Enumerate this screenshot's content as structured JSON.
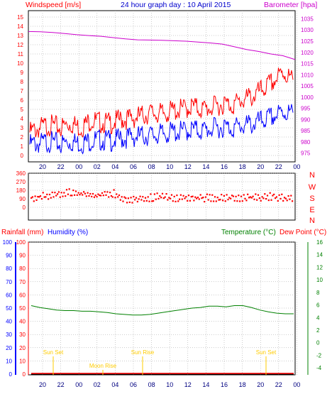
{
  "header": {
    "windspeed_label": "Windspeed [m/s]",
    "title": "24 hour graph day : 10 April 2015",
    "barometer_label": "Barometer [hpa]"
  },
  "colors": {
    "wind_gust": "#ff0000",
    "wind_avg": "#0000ff",
    "barometer": "#cc00cc",
    "direction": "#ff0000",
    "rain": "#ff0000",
    "humidity": "#0000ff",
    "temperature": "#008000",
    "dewpoint": "#ff0000",
    "sun": "#ffcc00",
    "moon": "#ffcc00",
    "frame": "#000000",
    "grid": "#999999"
  },
  "chart_data": [
    {
      "type": "line",
      "x_labels": [
        "20",
        "22",
        "00",
        "02",
        "04",
        "06",
        "08",
        "10",
        "12",
        "14",
        "16",
        "18",
        "20",
        "22",
        "00"
      ],
      "left_axis": {
        "label": "Windspeed [m/s]",
        "ticks": [
          0,
          1,
          2,
          3,
          4,
          5,
          6,
          7,
          8,
          9,
          10,
          11,
          12,
          13,
          14,
          15
        ],
        "ylim": [
          0,
          15
        ]
      },
      "right_axis": {
        "label": "Barometer [hpa]",
        "ticks": [
          975,
          980,
          985,
          990,
          995,
          1000,
          1005,
          1010,
          1015,
          1020,
          1025,
          1030,
          1035
        ],
        "ylim": [
          973,
          1038
        ]
      },
      "series": [
        {
          "key": "gust",
          "axis": "left",
          "values": [
            2.5,
            3.0,
            3.3,
            3.0,
            3.5,
            3.0,
            3.8,
            3.6,
            3.5,
            3.9,
            4.0,
            4.3,
            4.6,
            4.5,
            4.8,
            5.0,
            5.3,
            5.0,
            5.2,
            5.6,
            5.5,
            6.0,
            6.4,
            7.2,
            8.0,
            9.0,
            8.0
          ]
        },
        {
          "key": "average",
          "axis": "left",
          "values": [
            1.2,
            1.3,
            1.5,
            1.2,
            1.5,
            1.3,
            1.6,
            1.7,
            1.6,
            1.8,
            2.0,
            2.1,
            2.2,
            2.3,
            2.5,
            2.6,
            2.8,
            2.7,
            2.9,
            3.1,
            3.0,
            3.2,
            3.4,
            3.8,
            4.2,
            4.7,
            4.5
          ]
        },
        {
          "key": "barometer",
          "axis": "right",
          "values": [
            1029.3,
            1029.2,
            1028.9,
            1028.4,
            1027.9,
            1027.5,
            1027.2,
            1026.6,
            1026.0,
            1025.6,
            1025.5,
            1025.4,
            1025.2,
            1025.0,
            1024.6,
            1024.2,
            1023.7,
            1022.5,
            1021.3,
            1020.4,
            1019.3,
            1018.5,
            1016.8
          ]
        }
      ]
    },
    {
      "type": "scatter",
      "x_labels": [
        "20",
        "22",
        "00",
        "02",
        "04",
        "06",
        "08",
        "10",
        "12",
        "14",
        "16",
        "18",
        "20",
        "22",
        "00"
      ],
      "left_axis": {
        "ticks": [
          0,
          90,
          180,
          270,
          360
        ],
        "ylim": [
          0,
          360
        ]
      },
      "right_axis": {
        "ticks": [
          "N",
          "W",
          "S",
          "E",
          "N"
        ]
      },
      "series": [
        {
          "key": "direction",
          "values": [
            120,
            130,
            140,
            135,
            150,
            160,
            175,
            165,
            160,
            155,
            140,
            150,
            165,
            170,
            120,
            100,
            110,
            120,
            115,
            125,
            130,
            125,
            120,
            118,
            122,
            130,
            125,
            120,
            118,
            122,
            125,
            120,
            118,
            122,
            125,
            130,
            128,
            135,
            130,
            125,
            120,
            118
          ]
        }
      ]
    },
    {
      "type": "line",
      "x_labels": [
        "20",
        "22",
        "00",
        "02",
        "04",
        "06",
        "08",
        "10",
        "12",
        "14",
        "16",
        "18",
        "20",
        "22",
        "00"
      ],
      "left_axis": {
        "labels": [
          "Rainfall (mm)",
          "Humidity (%)"
        ],
        "ticks": [
          0,
          10,
          20,
          30,
          40,
          50,
          60,
          70,
          80,
          90,
          100
        ],
        "ylim": [
          0,
          100
        ]
      },
      "right_axis": {
        "labels": [
          "Temperature (°C)",
          "Dew Point (°C)"
        ],
        "ticks": [
          -4,
          -2,
          0,
          2,
          4,
          6,
          8,
          10,
          12,
          14,
          16
        ],
        "ylim": [
          -5,
          16
        ]
      },
      "series": [
        {
          "key": "temperature",
          "axis": "right",
          "values": [
            5.9,
            5.6,
            5.4,
            5.2,
            5.1,
            5.1,
            5.0,
            5.0,
            4.9,
            4.8,
            4.6,
            4.5,
            4.4,
            4.4,
            4.5,
            4.7,
            4.9,
            5.1,
            5.3,
            5.5,
            5.6,
            5.8,
            5.8,
            5.7,
            5.9,
            5.9,
            5.6,
            5.2,
            4.9,
            4.7,
            4.6,
            4.6
          ]
        },
        {
          "key": "dewpoint",
          "axis": "right",
          "values": [
            -5,
            -5,
            -5,
            -5,
            -5,
            -5,
            -5,
            -5,
            -5,
            -5,
            -5,
            -5,
            -5,
            -5,
            -5,
            -5,
            -5,
            -5,
            -5,
            -5,
            -5,
            -5,
            -5,
            -5,
            -5,
            -5,
            -5,
            -5,
            -5,
            -5,
            -5,
            -5
          ]
        },
        {
          "key": "rain",
          "axis": "left",
          "values": [
            0,
            0,
            0,
            0,
            0,
            0,
            0,
            0,
            0,
            0,
            0,
            0,
            0,
            0,
            0,
            0,
            0,
            0,
            0,
            0,
            0,
            0,
            0,
            0,
            0,
            0,
            0,
            0,
            0,
            0,
            0,
            0
          ]
        }
      ],
      "annotations": [
        {
          "text": "Sun Set",
          "x": "20:45"
        },
        {
          "text": "Sun Rise",
          "x": "06:45"
        },
        {
          "text": "Moon Rise",
          "x": "03:30"
        },
        {
          "text": "Sun Set",
          "x": "20:45"
        }
      ]
    }
  ],
  "panel3_labels": {
    "rainfall": "Rainfall (mm)",
    "humidity": "Humidity (%)",
    "temperature": "Temperature (°C)",
    "dewpoint": "Dew Point (°C)"
  },
  "compass_labels": [
    "N",
    "W",
    "S",
    "E",
    "N"
  ]
}
